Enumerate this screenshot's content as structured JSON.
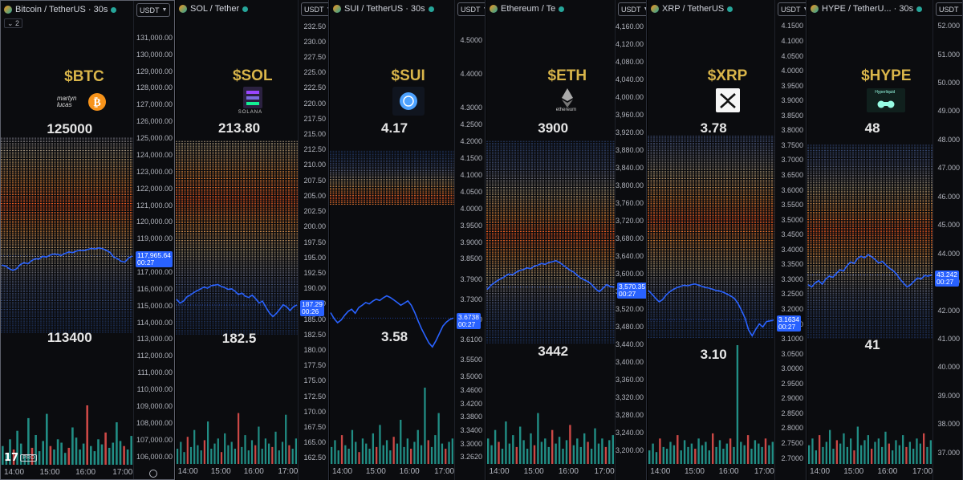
{
  "colors": {
    "price_line": "#2962ff",
    "volume_up": "#26a69a",
    "volume_down": "#ef5350",
    "label_title": "#d9b54a",
    "label_value": "#e6e6e6",
    "heat_cold": "#3a6fd8",
    "heat_hot": "#ff5a1f"
  },
  "x_ticks": [
    "14:00",
    "15:00",
    "16:00",
    "17:00"
  ],
  "chart_data": [
    {
      "type": "line",
      "symbol": "Bitcoin / TetherUS · 30s",
      "currency": "USDT",
      "indicator_count": "2",
      "annotation": {
        "ticker": "$BTC",
        "top": "125000",
        "bottom": "113400",
        "sponsor": "martyn lucas",
        "icon": "bitcoin-icon"
      },
      "y_ticks": [
        "131,000.00",
        "130,000.00",
        "129,000.00",
        "128,000.00",
        "127,000.00",
        "126,000.00",
        "125,000.00",
        "124,000.00",
        "123,000.00",
        "122,000.00",
        "121,000.00",
        "120,000.00",
        "119,000.00",
        "118,000.00",
        "117,000.00",
        "116,000.00",
        "115,000.00",
        "114,000.00",
        "113,000.00",
        "112,000.00",
        "111,000.00",
        "110,000.00",
        "109,000.00",
        "108,000.00",
        "107,000.00",
        "106,000.00"
      ],
      "ylim": [
        105500,
        132000
      ],
      "heat_range": [
        113400,
        125000
      ],
      "hot_level": 121000,
      "price_path": [
        117420,
        117380,
        117210,
        117100,
        117200,
        117450,
        117560,
        117500,
        117680,
        117800,
        117780,
        117940,
        117900,
        118020,
        118080,
        118050,
        118000,
        118120,
        118200,
        118160,
        118250,
        118300,
        118280,
        118350,
        118420,
        118380,
        118450,
        118400,
        118300,
        118180,
        117900,
        117800,
        117650,
        117600,
        117850,
        117965
      ],
      "last_price": "117,965.64",
      "countdown": "00:27",
      "volume": [
        22,
        14,
        30,
        18,
        40,
        25,
        12,
        55,
        20,
        35,
        16,
        28,
        60,
        22,
        18,
        30,
        26,
        14,
        20,
        44,
        32,
        18,
        25,
        70,
        22,
        16,
        30,
        24,
        38,
        20,
        26,
        50,
        28,
        22,
        18,
        34
      ]
    },
    {
      "type": "line",
      "symbol": "SOL / Tether",
      "currency": "USDT",
      "annotation": {
        "ticker": "$SOL",
        "top": "213.80",
        "bottom": "182.5",
        "sponsor": "SOLANA",
        "icon": "solana-icon"
      },
      "y_ticks": [
        "232.50",
        "230.00",
        "227.50",
        "225.00",
        "222.50",
        "220.00",
        "217.50",
        "215.00",
        "212.50",
        "210.00",
        "207.50",
        "205.00",
        "202.50",
        "200.00",
        "197.50",
        "195.00",
        "192.50",
        "190.00",
        "187.50",
        "185.00",
        "182.50",
        "180.00",
        "177.50",
        "175.00",
        "172.50",
        "170.00",
        "167.50",
        "165.00",
        "162.50"
      ],
      "ylim": [
        161.5,
        233.5
      ],
      "heat_range": [
        182.5,
        213.8
      ],
      "hot_level": 204.5,
      "price_path": [
        188.2,
        187.6,
        187.9,
        188.6,
        188.9,
        189.3,
        189.6,
        189.9,
        190.2,
        190.0,
        190.4,
        190.5,
        190.6,
        190.3,
        190.1,
        189.8,
        189.9,
        189.5,
        189.0,
        189.2,
        188.7,
        188.5,
        188.9,
        188.3,
        187.6,
        187.9,
        186.9,
        186.0,
        185.4,
        185.9,
        186.6,
        187.3,
        187.0,
        186.4,
        187.0,
        187.29
      ],
      "last_price": "187.29",
      "countdown": "00:26",
      "volume": [
        18,
        26,
        14,
        32,
        20,
        40,
        22,
        16,
        28,
        50,
        18,
        24,
        30,
        14,
        36,
        22,
        26,
        18,
        60,
        20,
        34,
        16,
        28,
        22,
        44,
        18,
        30,
        24,
        20,
        38,
        16,
        26,
        58,
        22,
        18,
        30
      ]
    },
    {
      "type": "line",
      "symbol": "SUI / TetherUS · 30s",
      "currency": "USDT",
      "annotation": {
        "ticker": "$SUI",
        "top": "4.17",
        "bottom": "3.58",
        "sponsor": "",
        "icon": "sui-icon"
      },
      "y_ticks": [
        "4.5000",
        "4.4000",
        "4.3000",
        "4.2500",
        "4.2000",
        "4.1500",
        "4.1000",
        "4.0500",
        "4.0000",
        "3.9500",
        "3.9000",
        "3.8500",
        "3.7900",
        "3.7300",
        "3.6700",
        "3.6100",
        "3.5500",
        "3.5000",
        "3.4600",
        "3.4200",
        "3.3800",
        "3.3400",
        "3.3000",
        "3.2620"
      ],
      "ylim": [
        3.24,
        4.56
      ],
      "heat_range": [
        4.01,
        4.17
      ],
      "hot_level": 4.03,
      "price_path": [
        3.69,
        3.672,
        3.66,
        3.668,
        3.682,
        3.694,
        3.7,
        3.688,
        3.705,
        3.712,
        3.72,
        3.716,
        3.724,
        3.73,
        3.726,
        3.734,
        3.74,
        3.735,
        3.728,
        3.72,
        3.712,
        3.718,
        3.725,
        3.712,
        3.69,
        3.664,
        3.64,
        3.62,
        3.6,
        3.588,
        3.606,
        3.628,
        3.65,
        3.662,
        3.67,
        3.6738
      ],
      "last_price": "3.6738",
      "countdown": "00:27",
      "volume": [
        20,
        28,
        16,
        34,
        22,
        18,
        40,
        26,
        14,
        30,
        24,
        18,
        36,
        20,
        46,
        22,
        28,
        16,
        32,
        24,
        52,
        20,
        30,
        18,
        26,
        40,
        22,
        90,
        28,
        20,
        34,
        60,
        24,
        18,
        26,
        30
      ]
    },
    {
      "type": "line",
      "symbol": "Ethereum / Te",
      "currency": "USDT",
      "annotation": {
        "ticker": "$ETH",
        "top": "3900",
        "bottom": "3442",
        "sponsor": "ethereum",
        "icon": "ethereum-icon"
      },
      "y_ticks": [
        "4,160.00",
        "4,120.00",
        "4,080.00",
        "4,040.00",
        "4,000.00",
        "3,960.00",
        "3,920.00",
        "3,880.00",
        "3,840.00",
        "3,800.00",
        "3,760.00",
        "3,720.00",
        "3,680.00",
        "3,640.00",
        "3,600.00",
        "3,560.00",
        "3,520.00",
        "3,480.00",
        "3,440.00",
        "3,400.00",
        "3,360.00",
        "3,320.00",
        "3,280.00",
        "3,240.00",
        "3,200.00"
      ],
      "ylim": [
        3170,
        4175
      ],
      "heat_range": [
        3442,
        3900
      ],
      "hot_level": 3688,
      "price_path": [
        3565,
        3574,
        3580,
        3586,
        3590,
        3595,
        3600,
        3598,
        3604,
        3608,
        3610,
        3614,
        3612,
        3618,
        3620,
        3624,
        3622,
        3626,
        3628,
        3630,
        3626,
        3620,
        3614,
        3608,
        3604,
        3596,
        3590,
        3586,
        3582,
        3575,
        3566,
        3560,
        3568,
        3576,
        3572,
        3570.35
      ],
      "last_price": "3,570.35",
      "countdown": "00:27",
      "volume": [
        30,
        22,
        40,
        26,
        18,
        50,
        24,
        34,
        20,
        44,
        28,
        18,
        36,
        22,
        60,
        26,
        30,
        20,
        40,
        24,
        32,
        18,
        28,
        46,
        22,
        30,
        20,
        36,
        26,
        18,
        42,
        24,
        30,
        20,
        28,
        34
      ]
    },
    {
      "type": "line",
      "symbol": "XRP / TetherUS",
      "currency": "USDT",
      "annotation": {
        "ticker": "$XRP",
        "top": "3.78",
        "bottom": "3.10",
        "sponsor": "",
        "icon": "xrp-icon"
      },
      "y_ticks": [
        "4.1500",
        "4.1000",
        "4.0500",
        "4.0000",
        "3.9500",
        "3.9000",
        "3.8500",
        "3.8000",
        "3.7500",
        "3.7000",
        "3.6500",
        "3.6000",
        "3.5500",
        "3.5000",
        "3.4500",
        "3.4000",
        "3.3500",
        "3.3000",
        "3.2500",
        "3.2000",
        "3.1500",
        "3.1000",
        "3.0500",
        "3.0000",
        "2.9500",
        "2.9000",
        "2.8500",
        "2.8000",
        "2.7500",
        "2.7000"
      ],
      "ylim": [
        2.68,
        4.17
      ],
      "heat_range": [
        3.1,
        3.78
      ],
      "hot_level": 3.5,
      "price_path": [
        3.262,
        3.25,
        3.236,
        3.224,
        3.232,
        3.248,
        3.258,
        3.266,
        3.272,
        3.276,
        3.28,
        3.278,
        3.282,
        3.284,
        3.28,
        3.276,
        3.272,
        3.27,
        3.266,
        3.262,
        3.26,
        3.256,
        3.25,
        3.244,
        3.236,
        3.22,
        3.196,
        3.17,
        3.13,
        3.11,
        3.132,
        3.15,
        3.14,
        3.158,
        3.16,
        3.1634
      ],
      "last_price": "3.1634",
      "countdown": "00:27",
      "volume": [
        16,
        24,
        14,
        30,
        20,
        18,
        26,
        22,
        34,
        16,
        28,
        20,
        24,
        18,
        30,
        22,
        26,
        16,
        36,
        20,
        28,
        18,
        24,
        30,
        20,
        140,
        26,
        22,
        34,
        18,
        28,
        24,
        20,
        30,
        22,
        26
      ]
    },
    {
      "type": "line",
      "symbol": "HYPE / TetherU... · 30s",
      "currency": "USDT",
      "annotation": {
        "ticker": "$HYPE",
        "top": "48",
        "bottom": "41",
        "sponsor": "Hyperliquid",
        "icon": "hyperliquid-icon"
      },
      "y_ticks": [
        "52.000",
        "51.000",
        "50.000",
        "49.000",
        "48.000",
        "47.000",
        "46.000",
        "45.000",
        "44.000",
        "43.000",
        "42.000",
        "41.000",
        "40.000",
        "39.000",
        "38.000",
        "37.000"
      ],
      "ylim": [
        36.6,
        52.2
      ],
      "heat_range": [
        41.0,
        47.8
      ],
      "hot_level": 44.8,
      "price_path": [
        42.9,
        42.82,
        42.96,
        43.04,
        42.92,
        43.1,
        43.2,
        43.16,
        43.3,
        43.42,
        43.38,
        43.56,
        43.7,
        43.64,
        43.82,
        43.9,
        43.84,
        43.96,
        43.88,
        43.78,
        43.66,
        43.72,
        43.6,
        43.48,
        43.4,
        43.28,
        43.1,
        42.96,
        42.82,
        42.9,
        43.02,
        43.14,
        43.1,
        43.22,
        43.2,
        43.242
      ],
      "last_price": "43.242",
      "countdown": "00:27",
      "volume": [
        22,
        30,
        16,
        34,
        20,
        26,
        40,
        18,
        28,
        24,
        36,
        20,
        30,
        16,
        44,
        22,
        28,
        34,
        18,
        26,
        30,
        20,
        38,
        24,
        16,
        28,
        22,
        34,
        20,
        26,
        18,
        30,
        24,
        36,
        20,
        28
      ]
    }
  ]
}
